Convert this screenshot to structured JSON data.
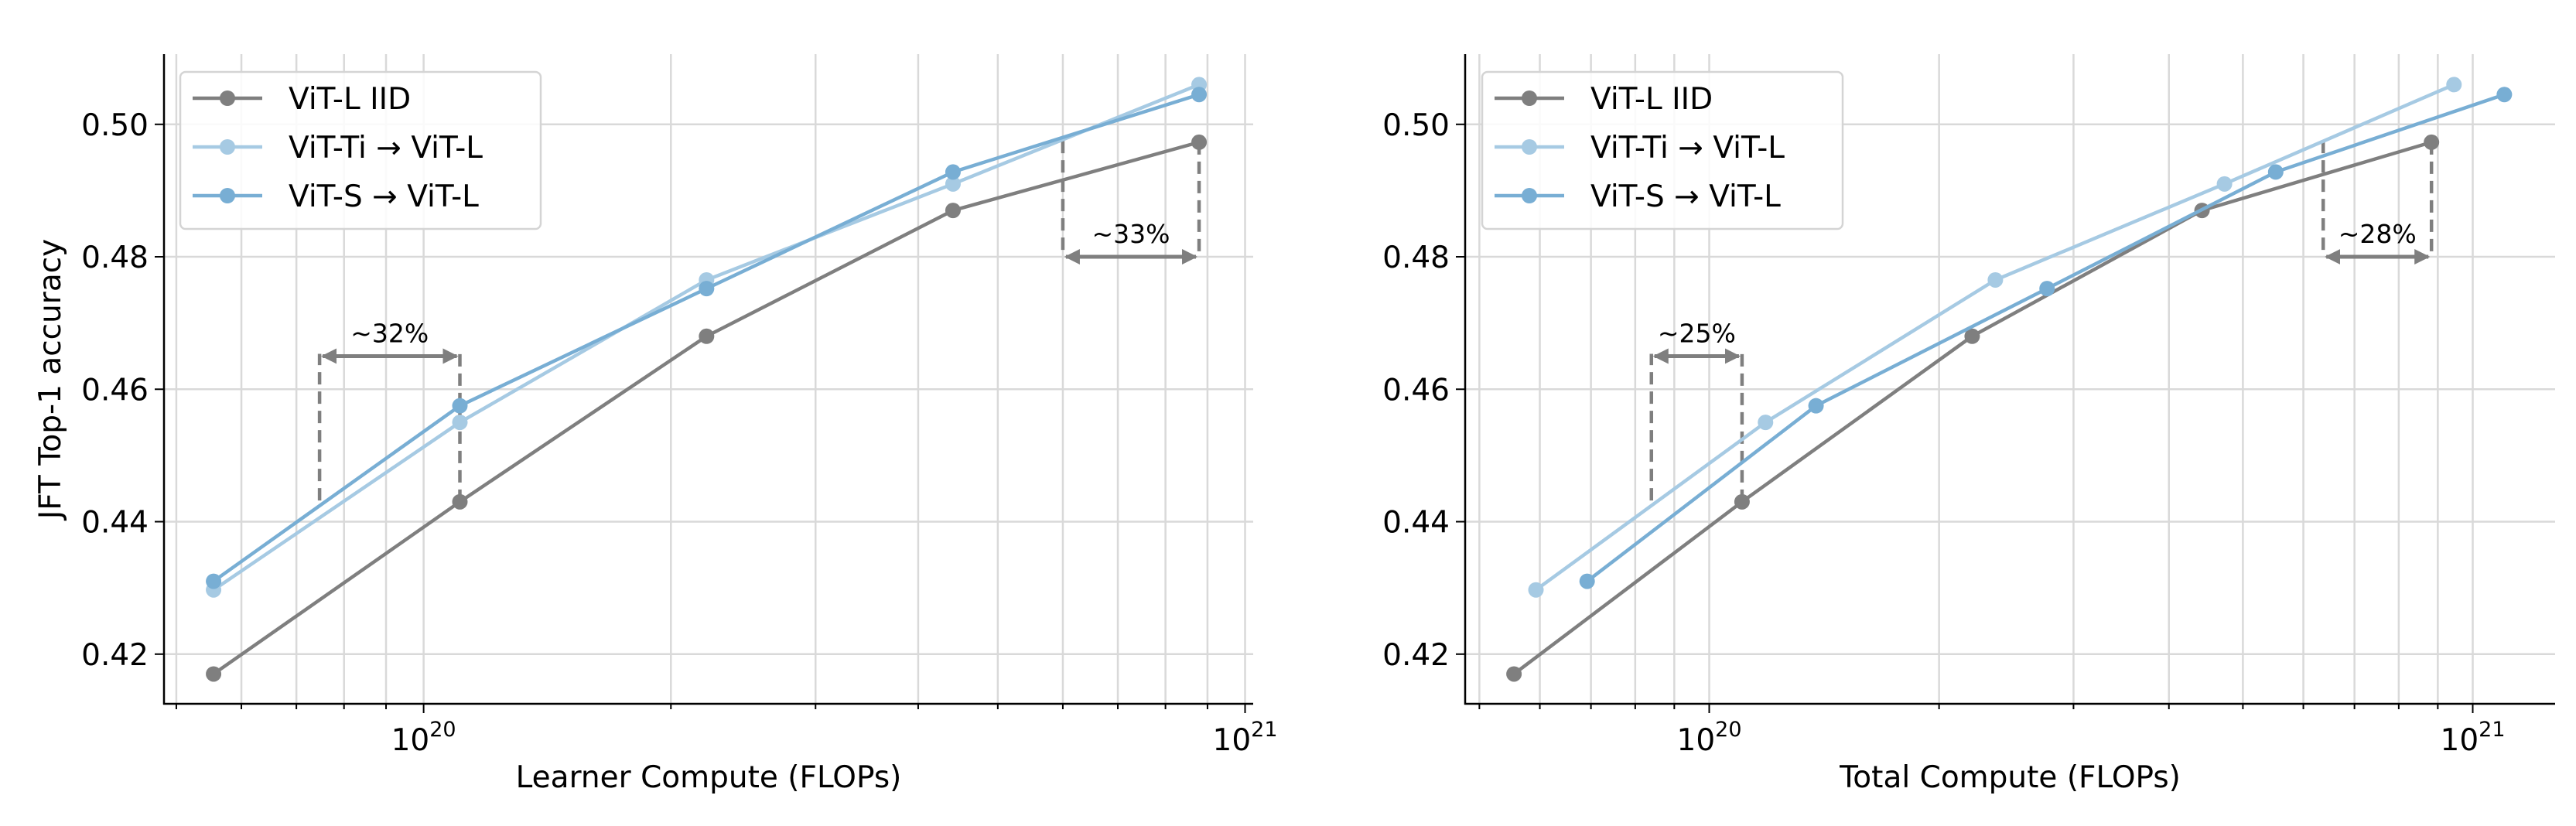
{
  "colors": {
    "iid": "#7f7f7f",
    "ti": "#a6cae3",
    "s": "#78aed4",
    "annotation": "#7f7f7f",
    "grid": "#d9d9d9"
  },
  "chart_data": [
    {
      "type": "line",
      "xlabel": "Learner Compute (FLOPs)",
      "ylabel": "JFT Top-1 accuracy",
      "xscale": "log",
      "xlim": [
        4.83e+19,
        1.023e+21
      ],
      "ylim": [
        0.4125,
        0.5106
      ],
      "grid": "both",
      "legend_placement": "upper-left",
      "yticks": [
        0.42,
        0.44,
        0.46,
        0.48,
        0.5
      ],
      "ytick_labels": [
        "0.42",
        "0.44",
        "0.46",
        "0.48",
        "0.50"
      ],
      "xticks": [
        {
          "value": 1e+20,
          "base": "10",
          "exp": "20"
        },
        {
          "value": 1e+21,
          "base": "10",
          "exp": "21"
        }
      ],
      "series": [
        {
          "name": "ViT-L IID",
          "color_key": "iid",
          "x": [
            5.55e+19,
            1.107e+20,
            2.21e+20,
            4.41e+20,
            8.79e+20
          ],
          "y": [
            0.417,
            0.443,
            0.468,
            0.487,
            0.4973
          ]
        },
        {
          "name": "ViT-Ti → ViT-L",
          "color_key": "ti",
          "x": [
            5.55e+19,
            1.107e+20,
            2.21e+20,
            4.41e+20,
            8.79e+20
          ],
          "y": [
            0.4297,
            0.455,
            0.4765,
            0.491,
            0.506
          ]
        },
        {
          "name": "ViT-S → ViT-L",
          "color_key": "s",
          "x": [
            5.55e+19,
            1.107e+20,
            2.21e+20,
            4.41e+20,
            8.79e+20
          ],
          "y": [
            0.431,
            0.4575,
            0.4752,
            0.4928,
            0.5045
          ]
        }
      ],
      "annotations": [
        {
          "text": "~32%",
          "x_from": 7.47e+19,
          "x_to": 1.107e+20,
          "y_arrow": 0.465,
          "y_from_left": 0.4432,
          "y_from_right": 0.443
        },
        {
          "text": "~33%",
          "x_from": 6e+20,
          "x_to": 8.79e+20,
          "y_arrow": 0.48,
          "y_from_left": 0.4975,
          "y_from_right": 0.4973
        }
      ]
    },
    {
      "type": "line",
      "xlabel": "Total Compute (FLOPs)",
      "ylabel": "",
      "xscale": "log",
      "xlim": [
        4.79e+19,
        1.282e+21
      ],
      "ylim": [
        0.4125,
        0.5106
      ],
      "grid": "both",
      "legend_placement": "upper-left",
      "yticks": [
        0.42,
        0.44,
        0.46,
        0.48,
        0.5
      ],
      "ytick_labels": [
        "0.42",
        "0.44",
        "0.46",
        "0.48",
        "0.50"
      ],
      "xticks": [
        {
          "value": 1e+20,
          "base": "10",
          "exp": "20"
        },
        {
          "value": 1e+21,
          "base": "10",
          "exp": "21"
        }
      ],
      "series": [
        {
          "name": "ViT-L IID",
          "color_key": "iid",
          "x": [
            5.55e+19,
            1.104e+20,
            2.21e+20,
            4.42e+20,
            8.83e+20
          ],
          "y": [
            0.417,
            0.443,
            0.468,
            0.487,
            0.4973
          ]
        },
        {
          "name": "ViT-Ti → ViT-L",
          "color_key": "ti",
          "x": [
            5.93e+19,
            1.185e+20,
            2.37e+20,
            4.73e+20,
            9.45e+20
          ],
          "y": [
            0.4297,
            0.455,
            0.4765,
            0.491,
            0.506
          ]
        },
        {
          "name": "ViT-S → ViT-L",
          "color_key": "s",
          "x": [
            6.92e+19,
            1.38e+20,
            2.77e+20,
            5.52e+20,
            1.1e+21
          ],
          "y": [
            0.431,
            0.4575,
            0.4752,
            0.4928,
            0.5045
          ]
        }
      ],
      "annotations": [
        {
          "text": "~25%",
          "x_from": 8.4e+19,
          "x_to": 1.104e+20,
          "y_arrow": 0.465,
          "y_from_left": 0.4432,
          "y_from_right": 0.443
        },
        {
          "text": "~28%",
          "x_from": 6.37e+20,
          "x_to": 8.83e+20,
          "y_arrow": 0.48,
          "y_from_left": 0.4975,
          "y_from_right": 0.4973
        }
      ]
    }
  ]
}
